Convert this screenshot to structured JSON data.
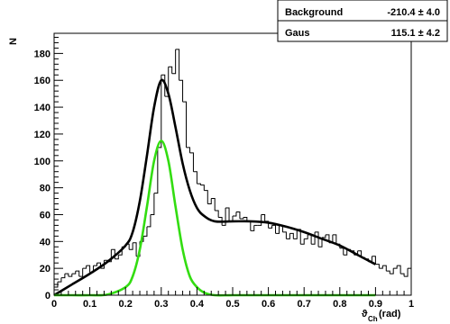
{
  "chart_data": {
    "type": "line",
    "xlabel": "ϑ",
    "xlabel_sub": "Ch",
    "xlabel_unit": "(rad)",
    "ylabel": "N",
    "xlim": [
      0,
      1
    ],
    "ylim": [
      0,
      195
    ],
    "x_ticks": [
      0,
      0.1,
      0.2,
      0.3,
      0.4,
      0.5,
      0.6,
      0.7,
      0.8,
      0.9,
      1
    ],
    "x_tick_labels": [
      "0",
      "0.1",
      "0.2",
      "0.3",
      "0.4",
      "0.5",
      "0.6",
      "0.7",
      "0.8",
      "0.9",
      "1"
    ],
    "y_ticks": [
      0,
      20,
      40,
      60,
      80,
      100,
      120,
      140,
      160,
      180
    ],
    "y_tick_labels": [
      "0",
      "20",
      "40",
      "60",
      "80",
      "100",
      "120",
      "140",
      "160",
      "180"
    ],
    "legend_position": "top-right",
    "stats": [
      {
        "label": "Background",
        "value": "-210.4 ± 4.0"
      },
      {
        "label": "Gaus",
        "value": "115.1 ± 4.2"
      }
    ],
    "histogram": {
      "bin_width": 0.01,
      "color": "#000000",
      "values": [
        6,
        10,
        13,
        16,
        14,
        16,
        18,
        14,
        20,
        22,
        17,
        22,
        24,
        20,
        26,
        25,
        34,
        27,
        30,
        36,
        38,
        34,
        39,
        29,
        40,
        44,
        51,
        60,
        76,
        110,
        164,
        148,
        170,
        165,
        183,
        160,
        144,
        110,
        106,
        92,
        83,
        82,
        78,
        68,
        72,
        63,
        58,
        52,
        65,
        55,
        59,
        62,
        57,
        58,
        55,
        48,
        52,
        52,
        60,
        55,
        50,
        52,
        46,
        52,
        47,
        42,
        46,
        42,
        49,
        38,
        42,
        45,
        38,
        47,
        36,
        43,
        45,
        39,
        45,
        38,
        35,
        30,
        34,
        33,
        30,
        33,
        28,
        27,
        25,
        29,
        23,
        20,
        22,
        18,
        16,
        20,
        22,
        16,
        14,
        20
      ]
    },
    "series": [
      {
        "color": "#000000",
        "x": [
          0,
          0.05,
          0.1,
          0.15,
          0.2,
          0.22,
          0.24,
          0.26,
          0.28,
          0.3,
          0.32,
          0.34,
          0.36,
          0.38,
          0.4,
          0.42,
          0.45,
          0.5,
          0.55,
          0.6,
          0.65,
          0.7,
          0.75,
          0.8,
          0.85,
          0.9
        ],
        "y": [
          0,
          8,
          16,
          25,
          37,
          47,
          70,
          104,
          140,
          160,
          150,
          125,
          98,
          78,
          65,
          59,
          55,
          55,
          55,
          54,
          51,
          47,
          42,
          37,
          30,
          23
        ]
      },
      {
        "color": "#33dd11",
        "x": [
          0,
          0.05,
          0.1,
          0.15,
          0.2,
          0.22,
          0.24,
          0.26,
          0.28,
          0.3,
          0.32,
          0.34,
          0.36,
          0.38,
          0.4,
          0.42,
          0.45,
          0.5,
          0.6,
          0.7,
          0.8,
          0.9
        ],
        "y": [
          0,
          0,
          0,
          0.5,
          6,
          14,
          34,
          66,
          100,
          115,
          100,
          66,
          34,
          14,
          6,
          2,
          0,
          0,
          0,
          0,
          0,
          0
        ]
      }
    ]
  }
}
